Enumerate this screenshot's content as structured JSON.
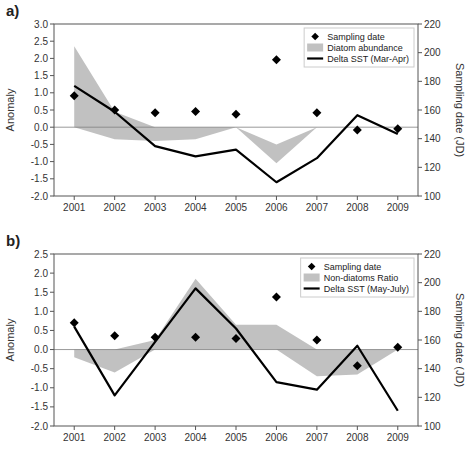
{
  "chart_data": [
    {
      "type": "line",
      "title": "a)",
      "x": [
        2001,
        2002,
        2003,
        2004,
        2005,
        2006,
        2007,
        2008,
        2009
      ],
      "xlim": [
        2000.5,
        2009.5
      ],
      "xticks": [
        2001,
        2002,
        2003,
        2004,
        2005,
        2006,
        2007,
        2008,
        2009
      ],
      "y_label": "Anomaly",
      "y2_label": "Sampling date (JD)",
      "ylim": [
        -2.0,
        3.0
      ],
      "yticks": [
        {
          "value": -2.0,
          "label": "-2.0"
        },
        -1.5,
        {
          "value": -1.0,
          "label": "-1.0"
        },
        -0.5,
        {
          "value": 0.0,
          "label": "0.0"
        },
        0.5,
        {
          "value": 1.0,
          "label": "1.0"
        },
        1.5,
        {
          "value": 2.0,
          "label": "2.0"
        },
        2.5,
        {
          "value": 3.0,
          "label": "3.0"
        }
      ],
      "y2lim": [
        100,
        220
      ],
      "y2ticks": [
        100,
        120,
        140,
        160,
        180,
        200,
        220
      ],
      "hlines": [
        {
          "value": 0,
          "color": "#808080"
        }
      ],
      "grid": false,
      "legend": "upper right",
      "series": [
        {
          "name": "Sampling date",
          "type": "scatter",
          "marker": "diamond",
          "color": "#000000",
          "axis": "y2",
          "values": [
            170,
            160,
            158,
            159,
            157,
            195,
            158,
            146,
            147
          ]
        },
        {
          "name": "Diatom abundance",
          "type": "band",
          "color": "#a0a0a0",
          "upper": [
            2.35,
            0.45,
            0.0,
            0.0,
            0.0,
            -0.5,
            0.0,
            0.0,
            0.0
          ],
          "lower": [
            0.0,
            -0.35,
            -0.4,
            -0.35,
            0.0,
            -1.05,
            0.0,
            0.0,
            0.0
          ]
        },
        {
          "name": "Delta SST (Mar-Apr)",
          "type": "line",
          "color": "#000000",
          "values": [
            1.2,
            0.45,
            -0.55,
            -0.85,
            -0.65,
            -1.6,
            -0.9,
            0.35,
            -0.2
          ]
        }
      ]
    },
    {
      "type": "line",
      "title": "b)",
      "x": [
        2001,
        2002,
        2003,
        2004,
        2005,
        2006,
        2007,
        2008,
        2009
      ],
      "xlim": [
        2000.5,
        2009.5
      ],
      "xticks": [
        2001,
        2002,
        2003,
        2004,
        2005,
        2006,
        2007,
        2008,
        2009
      ],
      "y_label": "Anomaly",
      "y2_label": "Sampling date (JD)",
      "ylim": [
        -2.0,
        2.5
      ],
      "yticks": [
        {
          "value": -2.0,
          "label": "-2.0"
        },
        -1.5,
        {
          "value": -1.0,
          "label": "-1.0"
        },
        -0.5,
        {
          "value": 0.0,
          "label": "0.0"
        },
        0.5,
        {
          "value": 1.0,
          "label": "1.0"
        },
        1.5,
        {
          "value": 2.0,
          "label": "2.0"
        },
        2.5
      ],
      "y2lim": [
        100,
        220
      ],
      "y2ticks": [
        100,
        120,
        140,
        160,
        180,
        200,
        220
      ],
      "hlines": [
        {
          "value": 0,
          "color": "#808080"
        }
      ],
      "grid": false,
      "legend": "upper right",
      "series": [
        {
          "name": "Sampling date",
          "type": "scatter",
          "marker": "diamond",
          "color": "#000000",
          "axis": "y2",
          "values": [
            172,
            163,
            162,
            162,
            161,
            190,
            160,
            142,
            155
          ]
        },
        {
          "name": "Non-diatoms Ratio",
          "type": "band",
          "color": "#a0a0a0",
          "upper": [
            0.0,
            0.0,
            0.25,
            1.85,
            0.65,
            0.65,
            0.0,
            0.0,
            0.0
          ],
          "lower": [
            -0.2,
            -0.6,
            0.0,
            0.0,
            0.0,
            0.0,
            -0.7,
            -0.65,
            0.0
          ]
        },
        {
          "name": "Delta SST (May-July)",
          "type": "line",
          "color": "#000000",
          "values": [
            0.6,
            -1.2,
            0.2,
            1.6,
            0.55,
            -0.85,
            -1.05,
            0.1,
            -1.6
          ]
        }
      ]
    }
  ]
}
